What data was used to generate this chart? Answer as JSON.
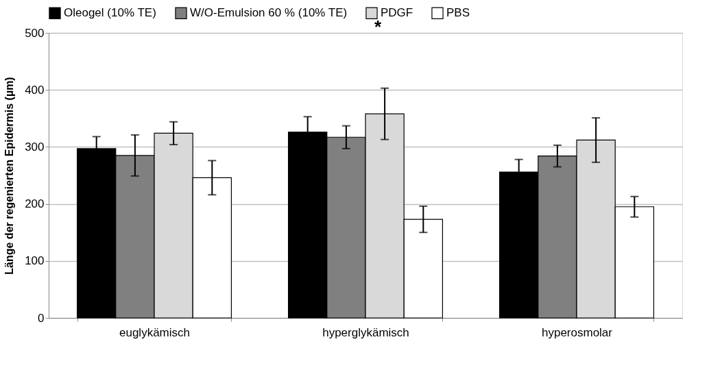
{
  "chart_data": {
    "type": "bar",
    "ylabel": "Länge der regenierten Epidermis (µm)",
    "categories": [
      "euglykämisch",
      "hyperglykämisch",
      "hyperosmolar"
    ],
    "series": [
      {
        "name": "Oleogel (10% TE)",
        "color": "#000000",
        "values": [
          297,
          326,
          256
        ],
        "errors": [
          21,
          27,
          22
        ]
      },
      {
        "name": "W/O-Emulsion 60 % (10% TE)",
        "color": "#808080",
        "values": [
          285,
          317,
          284
        ],
        "errors": [
          36,
          20,
          19
        ]
      },
      {
        "name": "PDGF",
        "color": "#d9d9d9",
        "values": [
          324,
          358,
          312
        ],
        "errors": [
          20,
          45,
          39
        ]
      },
      {
        "name": "PBS",
        "color": "#ffffff",
        "values": [
          246,
          173,
          195
        ],
        "errors": [
          30,
          23,
          18
        ]
      }
    ],
    "ylim": [
      0,
      500
    ],
    "yticks": [
      0,
      100,
      200,
      300,
      400,
      500
    ],
    "grid": "y",
    "legend": "top",
    "annotations": [
      "*"
    ]
  }
}
